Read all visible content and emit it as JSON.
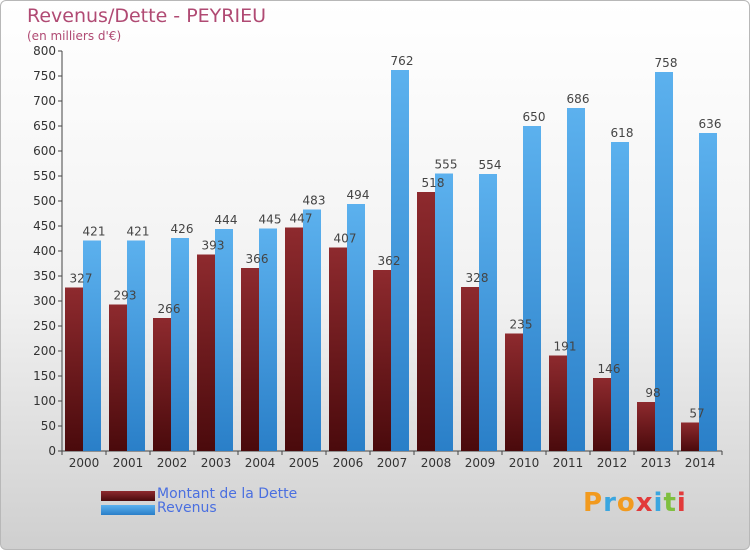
{
  "header": {
    "title": "Revenus/Dette - PEYRIEU",
    "subtitle": "(en milliers d'€)"
  },
  "legend": {
    "items": [
      {
        "label": "Montant de la Dette",
        "color": "#7a1e22"
      },
      {
        "label": "Revenus",
        "color": "#4aa3e6"
      }
    ]
  },
  "logo": {
    "text": "Proxiti"
  },
  "chart_data": {
    "type": "bar",
    "title": "Revenus/Dette - PEYRIEU",
    "ylim": [
      0,
      800
    ],
    "ytick_step": 50,
    "grid": false,
    "legend_position": "bottom-left",
    "categories": [
      "2000",
      "2001",
      "2002",
      "2003",
      "2004",
      "2005",
      "2006",
      "2007",
      "2008",
      "2009",
      "2010",
      "2011",
      "2012",
      "2013",
      "2014"
    ],
    "series": [
      {
        "name": "Montant de la Dette",
        "color": "#7a1e22",
        "values": [
          327,
          293,
          266,
          393,
          366,
          447,
          407,
          362,
          518,
          328,
          235,
          191,
          146,
          98,
          57
        ]
      },
      {
        "name": "Revenus",
        "color": "#4aa3e6",
        "values": [
          421,
          421,
          426,
          444,
          445,
          483,
          494,
          762,
          555,
          554,
          650,
          686,
          618,
          758,
          636
        ]
      }
    ]
  }
}
